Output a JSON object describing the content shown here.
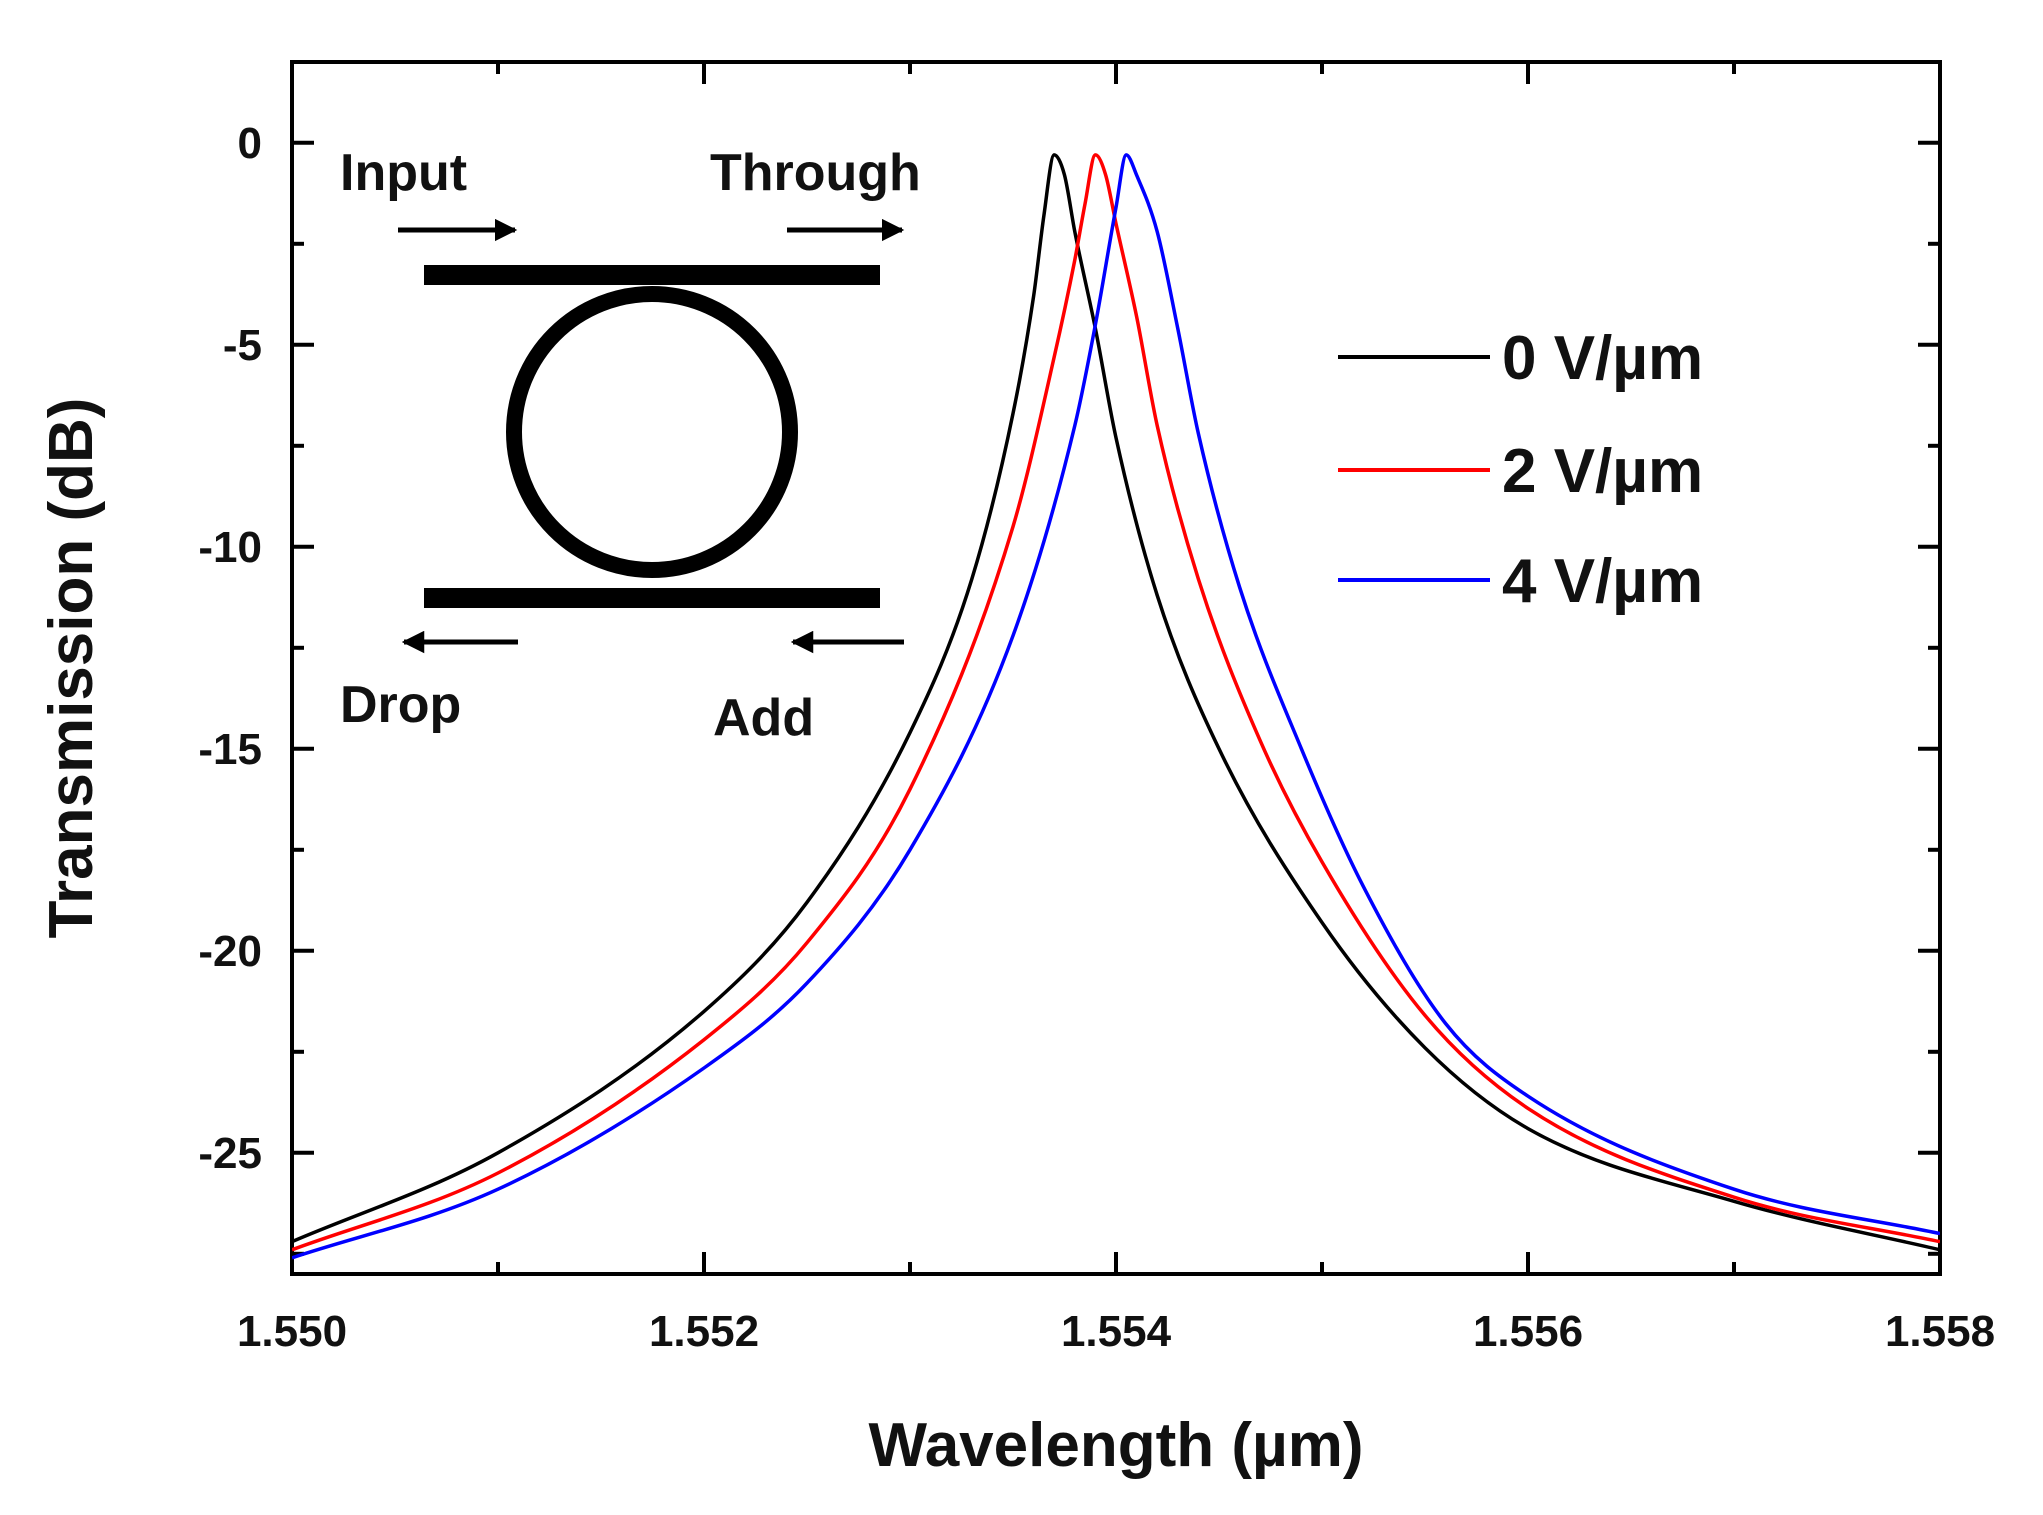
{
  "chart_data": {
    "type": "line",
    "title": "",
    "xlabel": "Wavelength (µm)",
    "ylabel": "Transmission (dB)",
    "xlim": [
      1.55,
      1.558
    ],
    "ylim": [
      -28,
      2
    ],
    "xticks": [
      1.55,
      1.552,
      1.554,
      1.556,
      1.558
    ],
    "xtick_labels": [
      "1.550",
      "1.552",
      "1.554",
      "1.556",
      "1.558"
    ],
    "yticks": [
      0,
      -5,
      -10,
      -15,
      -20,
      -25
    ],
    "ytick_labels": [
      "0",
      "-5",
      "-10",
      "-15",
      "-20",
      "-25"
    ],
    "grid": false,
    "legend_position": "right",
    "series": [
      {
        "name": "0 V/µm",
        "color": "#000000",
        "x": [
          1.55,
          1.551,
          1.552,
          1.5525,
          1.553,
          1.5533,
          1.5535,
          1.5536,
          1.55365,
          1.5537,
          1.55375,
          1.5538,
          1.5539,
          1.554,
          1.5542,
          1.5545,
          1.555,
          1.5555,
          1.556,
          1.557,
          1.558
        ],
        "y": [
          -27.2,
          -25.0,
          -21.5,
          -18.8,
          -14.6,
          -10.8,
          -6.7,
          -3.8,
          -1.8,
          -0.3,
          -0.8,
          -2.2,
          -4.6,
          -7.3,
          -11.2,
          -15.0,
          -19.3,
          -22.4,
          -24.4,
          -26.2,
          -27.4
        ]
      },
      {
        "name": "2 V/µm",
        "color": "#ff0000",
        "x": [
          1.55,
          1.551,
          1.552,
          1.5525,
          1.553,
          1.5535,
          1.5537,
          1.5538,
          1.55385,
          1.5539,
          1.55395,
          1.554,
          1.5541,
          1.5542,
          1.5544,
          1.5547,
          1.555,
          1.5555,
          1.556,
          1.557,
          1.558
        ],
        "y": [
          -27.4,
          -25.5,
          -22.2,
          -19.8,
          -16.0,
          -9.5,
          -5.3,
          -2.9,
          -1.5,
          -0.3,
          -0.8,
          -2.0,
          -4.3,
          -7.0,
          -10.8,
          -14.8,
          -17.8,
          -21.6,
          -23.9,
          -26.1,
          -27.2
        ]
      },
      {
        "name": "4 V/µm",
        "color": "#0000ff",
        "x": [
          1.55,
          1.551,
          1.552,
          1.5525,
          1.553,
          1.5535,
          1.5538,
          1.5539,
          1.554,
          1.55405,
          1.5541,
          1.5542,
          1.5543,
          1.5544,
          1.5546,
          1.5549,
          1.5552,
          1.5556,
          1.556,
          1.557,
          1.558
        ],
        "y": [
          -27.6,
          -25.9,
          -22.9,
          -20.8,
          -17.5,
          -12.2,
          -7.0,
          -4.5,
          -1.6,
          -0.3,
          -0.8,
          -2.2,
          -4.6,
          -7.2,
          -11.0,
          -15.0,
          -18.4,
          -21.8,
          -23.6,
          -25.9,
          -27.0
        ]
      }
    ]
  },
  "inset": {
    "input_label": "Input",
    "through_label": "Through",
    "drop_label": "Drop",
    "add_label": "Add"
  }
}
